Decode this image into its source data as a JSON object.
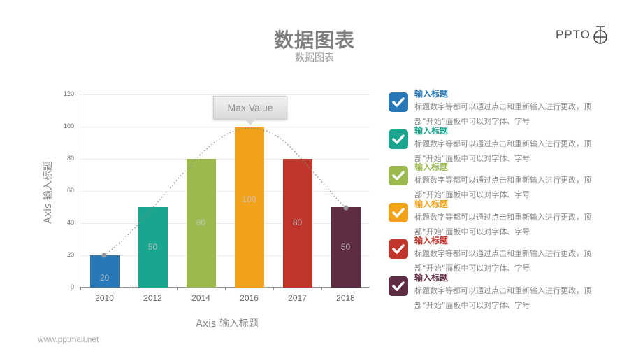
{
  "header": {
    "title": "数据图表",
    "subtitle": "数据图表",
    "logo_text": "PPTO",
    "logo_icon": "circle-cross-icon"
  },
  "footer": {
    "url": "www.pptmall.net"
  },
  "chart": {
    "callout": "Max Value",
    "xlabel": "Axis 输入标题",
    "ylabel": "Axis 输入标题"
  },
  "chart_data": {
    "type": "bar",
    "title": "数据图表",
    "subtitle": "数据图表",
    "categories": [
      "2010",
      "2012",
      "2014",
      "2016",
      "2017",
      "2018"
    ],
    "values": [
      20,
      50,
      80,
      100,
      80,
      50
    ],
    "colors": [
      "#2878b8",
      "#1aa58f",
      "#9aba50",
      "#f2a11a",
      "#c0362c",
      "#5e2d44"
    ],
    "data_labels": [
      "20",
      "50",
      "80",
      "100",
      "80",
      "50"
    ],
    "xlabel": "Axis 输入标题",
    "ylabel": "Axis 输入标题",
    "ylim": [
      0,
      120
    ],
    "yticks": [
      "0",
      "20",
      "40",
      "60",
      "80",
      "100",
      "120"
    ],
    "grid": true,
    "annotations": [
      "Max Value"
    ],
    "overlay": {
      "type": "line",
      "style": "dotted",
      "shape": "bell-curve",
      "from": "2010:20",
      "peak": "2016:~97",
      "to": "2018:50"
    }
  },
  "legend": {
    "items": [
      {
        "title": "输入标题",
        "desc": "标题数字等都可以通过点击和重新输入进行更改，顶部“开始”面板中可以对字体、字号",
        "color": "#2878b8",
        "icon": "checkbox-checked-icon"
      },
      {
        "title": "输入标题",
        "desc": "标题数字等都可以通过点击和重新输入进行更改，顶部“开始”面板中可以对字体、字号",
        "color": "#1aa58f",
        "icon": "checkbox-checked-icon"
      },
      {
        "title": "输入标题",
        "desc": "标题数字等都可以通过点击和重新输入进行更改，顶部“开始”面板中可以对字体、字号",
        "color": "#9aba50",
        "icon": "checkbox-checked-icon"
      },
      {
        "title": "输入标题",
        "desc": "标题数字等都可以通过点击和重新输入进行更改，顶部“开始”面板中可以对字体、字号",
        "color": "#f2a11a",
        "icon": "checkbox-checked-icon"
      },
      {
        "title": "输入标题",
        "desc": "标题数字等都可以通过点击和重新输入进行更改，顶部“开始”面板中可以对字体、字号",
        "color": "#c0362c",
        "icon": "checkbox-checked-icon"
      },
      {
        "title": "输入标题",
        "desc": "标题数字等都可以通过点击和重新输入进行更改，顶部“开始”面板中可以对字体、字号",
        "color": "#5e2d44",
        "icon": "checkbox-checked-icon"
      }
    ]
  }
}
